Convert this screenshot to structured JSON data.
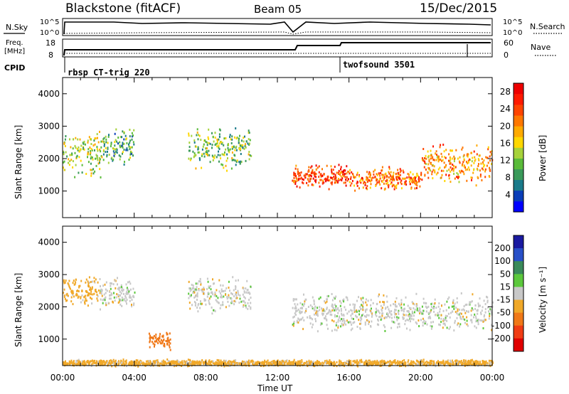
{
  "header": {
    "station": "Blackstone (fitACF)",
    "beam": "Beam 05",
    "date": "15/Dec/2015"
  },
  "top_panels": {
    "nsky_label": "N.Sky",
    "nsearch_label": "N.Search",
    "freq_label_1": "Freq.",
    "freq_label_2": "[MHz]",
    "nave_label": "Nave",
    "cpid_label": "CPID",
    "noise_ticks": [
      "10^5",
      "10^0"
    ],
    "freq_ticks": [
      "18",
      "8"
    ],
    "nave_ticks": [
      "60",
      "0"
    ],
    "cpid_segments": [
      {
        "start_hour": 0.0,
        "label": "rbsp CT-trig 220"
      },
      {
        "start_hour": 15.45,
        "label": "twofsound 3501"
      }
    ]
  },
  "x_axis": {
    "title": "Time UT",
    "tick_labels": [
      "00:00",
      "04:00",
      "08:00",
      "12:00",
      "16:00",
      "20:00",
      "00:00"
    ],
    "tick_hours": [
      0,
      4,
      8,
      12,
      16,
      20,
      24
    ]
  },
  "chart_data": [
    {
      "type": "heatmap",
      "name": "power",
      "ylabel": "Slant Range [km]",
      "xlabel": "Time UT",
      "xlim": [
        0,
        24
      ],
      "ylim": [
        180,
        4500
      ],
      "ytick_labels": [
        "1000",
        "2000",
        "3000",
        "4000"
      ],
      "colorbar": {
        "label": "Power [dB]",
        "tick_labels": [
          "4",
          "8",
          "12",
          "16",
          "20",
          "24",
          "28"
        ],
        "range": [
          0,
          30
        ],
        "colors": [
          "#0000ff",
          "#0a3db8",
          "#1a7a8a",
          "#3a9a5a",
          "#5abb3a",
          "#a6d23a",
          "#ffd700",
          "#ffaa00",
          "#ff7700",
          "#ff4400",
          "#ff1a00",
          "#ee0000"
        ]
      },
      "echo_regions": [
        {
          "t": [
            0.0,
            2.2
          ],
          "r": [
            1400,
            3000
          ],
          "approx_power_db": 14
        },
        {
          "t": [
            2.2,
            4.0
          ],
          "r": [
            1800,
            3000
          ],
          "approx_power_db": 10
        },
        {
          "t": [
            7.0,
            10.5
          ],
          "r": [
            1600,
            3100
          ],
          "approx_power_db": 12
        },
        {
          "t": [
            12.8,
            16.0
          ],
          "r": [
            1100,
            1900
          ],
          "approx_power_db": 24
        },
        {
          "t": [
            16.0,
            20.0
          ],
          "r": [
            1000,
            1800
          ],
          "approx_power_db": 22
        },
        {
          "t": [
            20.0,
            24.0
          ],
          "r": [
            1200,
            2500
          ],
          "approx_power_db": 20
        }
      ]
    },
    {
      "type": "heatmap",
      "name": "velocity",
      "ylabel": "Slant Range [km]",
      "xlabel": "Time UT",
      "xlim": [
        0,
        24
      ],
      "ylim": [
        180,
        4500
      ],
      "ytick_labels": [
        "1000",
        "2000",
        "3000",
        "4000"
      ],
      "colorbar": {
        "label": "Velocity [m s⁻¹]",
        "tick_labels": [
          "200",
          "100",
          "50",
          "15",
          "-15",
          "-50",
          "-100",
          "-200"
        ],
        "colors": [
          "#1a1aa0",
          "#2850c8",
          "#3a8a5a",
          "#5cc83c",
          "#c8c8c8",
          "#f0a828",
          "#f07818",
          "#f03c14",
          "#e00000"
        ]
      },
      "echo_regions": [
        {
          "t": [
            0.0,
            2.0
          ],
          "r": [
            2000,
            3100
          ],
          "approx_velocity_ms": -30
        },
        {
          "t": [
            2.0,
            4.0
          ],
          "r": [
            1900,
            3000
          ],
          "approx_velocity_ms": 0
        },
        {
          "t": [
            4.8,
            6.0
          ],
          "r": [
            700,
            1300
          ],
          "approx_velocity_ms": -80
        },
        {
          "t": [
            7.0,
            10.5
          ],
          "r": [
            1800,
            3000
          ],
          "approx_velocity_ms": 0
        },
        {
          "t": [
            12.8,
            24.0
          ],
          "r": [
            1200,
            2500
          ],
          "approx_velocity_ms": 0
        },
        {
          "t": [
            0.0,
            24.0
          ],
          "r": [
            180,
            400
          ],
          "approx_velocity_ms": -30
        }
      ]
    }
  ]
}
